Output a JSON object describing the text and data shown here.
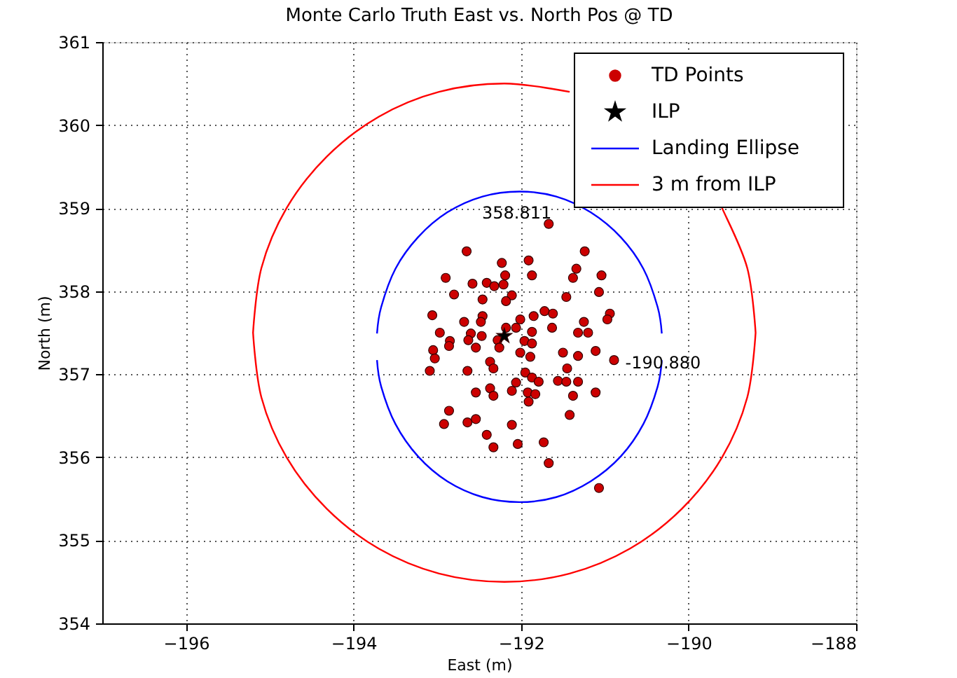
{
  "chart_data": {
    "type": "scatter",
    "title": "Monte Carlo Truth East vs. North Pos @ TD",
    "xlabel": "East (m)",
    "ylabel": "North (m)",
    "xlim": [
      -197,
      -188
    ],
    "xticks": [
      -196,
      -194,
      -192,
      -190,
      -188
    ],
    "ylim": [
      354,
      361
    ],
    "yticks": [
      354,
      355,
      356,
      357,
      358,
      359,
      360,
      361
    ],
    "grid": true,
    "legend": "top right",
    "annotations": [
      {
        "text": "358.811",
        "x": -191.67,
        "y": 358.81
      },
      {
        "text": "-190.880",
        "x": -190.89,
        "y": 357.17
      }
    ],
    "series": [
      {
        "name": "TD Points",
        "type": "scatter",
        "marker": "circle",
        "color": "#cc0000",
        "x": [
          -191.67,
          -192.65,
          -191.24,
          -191.91,
          -192.23,
          -191.87,
          -192.19,
          -191.34,
          -191.38,
          -191.04,
          -192.9,
          -192.58,
          -192.41,
          -192.32,
          -192.21,
          -192.8,
          -192.46,
          -192.11,
          -192.18,
          -191.46,
          -191.07,
          -193.06,
          -192.68,
          -192.46,
          -192.48,
          -192.01,
          -191.85,
          -191.72,
          -191.62,
          -190.94,
          -190.97,
          -191.25,
          -192.97,
          -192.6,
          -192.18,
          -191.87,
          -191.32,
          -191.2,
          -192.63,
          -192.47,
          -192.28,
          -192.06,
          -191.96,
          -191.87,
          -191.63,
          -192.85,
          -192.86,
          -193.05,
          -193.03,
          -192.54,
          -192.26,
          -192.01,
          -191.89,
          -191.5,
          -191.32,
          -191.11,
          -190.89,
          -192.37,
          -192.33,
          -192.64,
          -193.09,
          -191.95,
          -191.87,
          -191.79,
          -192.06,
          -192.11,
          -191.92,
          -191.83,
          -191.56,
          -191.45,
          -191.46,
          -191.32,
          -191.38,
          -191.11,
          -192.54,
          -192.37,
          -192.33,
          -191.91,
          -191.42,
          -192.86,
          -192.92,
          -192.64,
          -192.54,
          -192.11,
          -192.41,
          -192.33,
          -192.04,
          -191.73,
          -191.67,
          -191.07
        ],
        "values": [
          358.81,
          358.48,
          358.48,
          358.37,
          358.34,
          358.19,
          358.19,
          358.27,
          358.16,
          358.19,
          358.16,
          358.09,
          358.1,
          358.06,
          358.08,
          357.96,
          357.9,
          357.95,
          357.88,
          357.93,
          357.99,
          357.71,
          357.63,
          357.7,
          357.63,
          357.66,
          357.7,
          357.76,
          357.73,
          357.73,
          357.66,
          357.63,
          357.5,
          357.49,
          357.56,
          357.51,
          357.5,
          357.5,
          357.41,
          357.46,
          357.41,
          357.56,
          357.4,
          357.37,
          357.56,
          357.4,
          357.34,
          357.29,
          357.19,
          357.32,
          357.32,
          357.26,
          357.21,
          357.26,
          357.22,
          357.28,
          357.17,
          357.15,
          357.07,
          357.04,
          357.04,
          357.02,
          356.96,
          356.91,
          356.9,
          356.8,
          356.78,
          356.76,
          356.92,
          357.07,
          356.91,
          356.91,
          356.74,
          356.78,
          356.78,
          356.83,
          356.74,
          356.67,
          356.51,
          356.56,
          356.4,
          356.42,
          356.46,
          356.39,
          356.27,
          356.12,
          356.16,
          356.18,
          355.93,
          355.63
        ]
      },
      {
        "name": "ILP",
        "type": "scatter",
        "marker": "star",
        "color": "#000000",
        "x": [
          -192.2
        ],
        "values": [
          357.46
        ]
      },
      {
        "name": "Landing Ellipse",
        "type": "line",
        "marker": "none",
        "color": "#0000ff",
        "x": [
          -190.32,
          -190.37,
          -190.54,
          -190.81,
          -191.17,
          -191.58,
          -192.02,
          -192.46,
          -192.88,
          -193.23,
          -193.5,
          -193.67,
          -193.72,
          null,
          -193.72,
          -193.67,
          -193.5,
          -193.23,
          -192.88,
          -192.46,
          -192.02,
          -191.58,
          -191.17,
          -190.81,
          -190.54,
          -190.37,
          -190.32
        ],
        "values": [
          357.49,
          357.81,
          358.27,
          358.65,
          358.95,
          359.14,
          359.2,
          359.14,
          358.95,
          358.65,
          358.27,
          357.81,
          357.49,
          null,
          357.17,
          356.85,
          356.4,
          356.01,
          355.71,
          355.52,
          355.46,
          355.52,
          355.71,
          356.01,
          356.4,
          356.85,
          357.17
        ]
      },
      {
        "name": "3 m from ILP",
        "type": "line",
        "marker": "none",
        "color": "#ff0000",
        "x": [
          -189.2,
          -189.3,
          -189.6,
          -189.63,
          null,
          null,
          -191.42,
          -192.2,
          -192.98,
          -193.7,
          -194.32,
          -194.8,
          -195.1,
          -195.2,
          null,
          -195.2,
          -195.1,
          -194.8,
          -194.32,
          -193.7,
          -192.98,
          -192.2,
          -191.42,
          -190.7,
          -190.08,
          -189.6,
          -189.3,
          -189.2
        ],
        "values": [
          357.5,
          358.28,
          359.0,
          359.05,
          null,
          null,
          360.4,
          360.5,
          360.4,
          360.1,
          359.62,
          359.0,
          358.28,
          357.5,
          null,
          357.5,
          356.72,
          356.0,
          355.38,
          354.9,
          354.6,
          354.5,
          354.6,
          354.9,
          355.38,
          356.0,
          356.72,
          357.5
        ]
      }
    ]
  }
}
